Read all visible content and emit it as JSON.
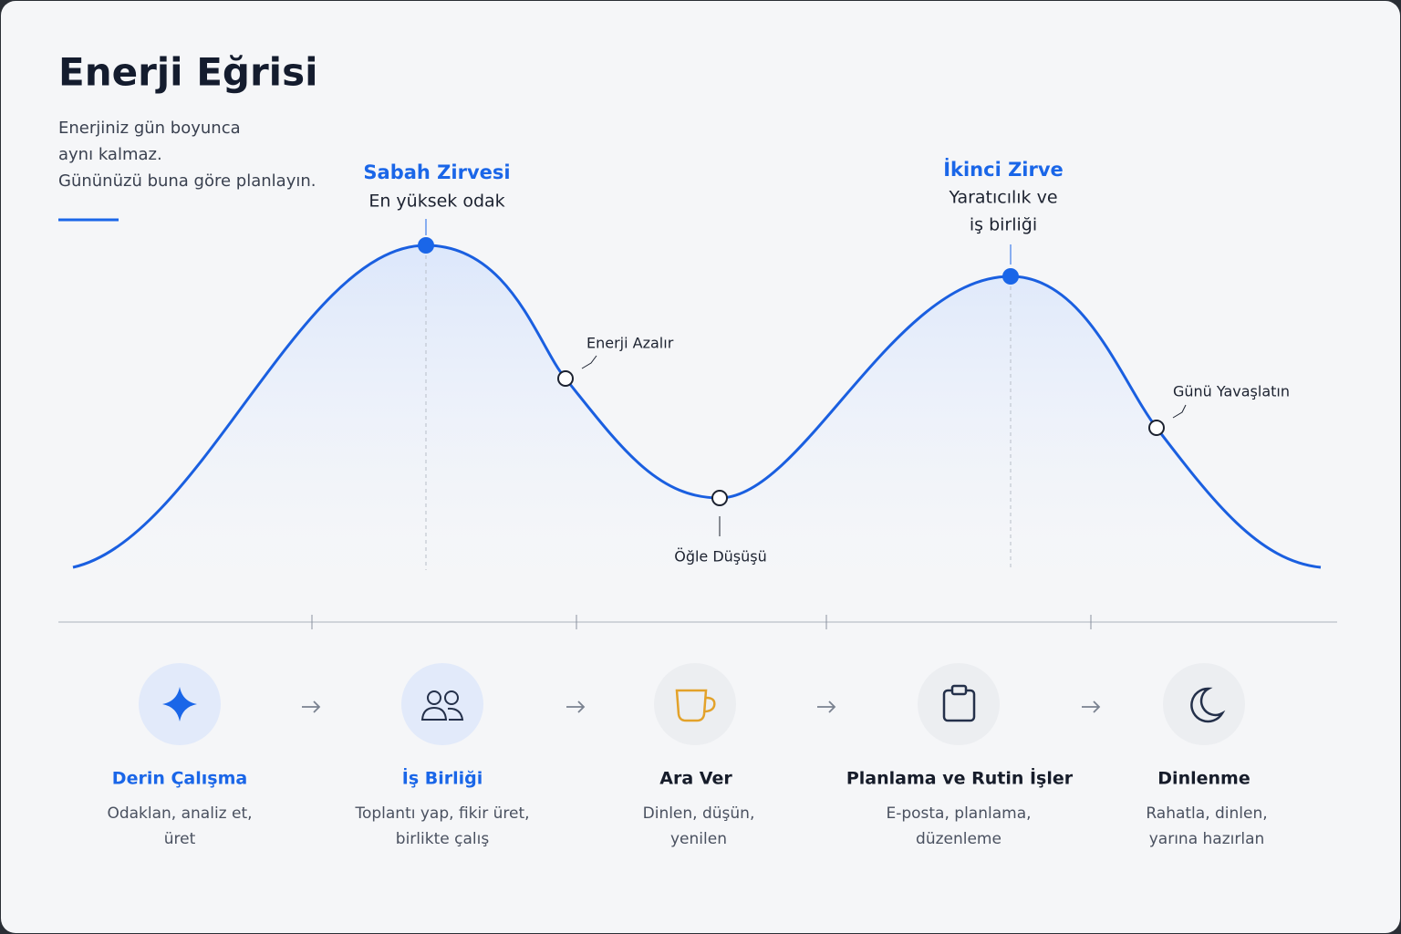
{
  "header": {
    "title": "Enerji Eğrisi",
    "subtitle": [
      "Enerjiniz gün boyunca",
      "aynı kalmaz.",
      "Gününüzü buna göre planlayın."
    ]
  },
  "peaks": [
    {
      "title": "Sabah Zirvesi",
      "lines": [
        "En yüksek odak"
      ]
    },
    {
      "title": "İkinci Zirve",
      "lines": [
        "Yaratıcılık ve",
        "iş birliği"
      ]
    }
  ],
  "markers": [
    "Enerji Azalır",
    "Öğle Düşüşü",
    "Günü Yavaşlatın"
  ],
  "steps": [
    {
      "title": "Derin Çalışma",
      "lines": [
        "Odaklan, analiz et,",
        "üret"
      ]
    },
    {
      "title": "İş Birliği",
      "lines": [
        "Toplantı yap, fikir üret,",
        "birlikte çalış"
      ]
    },
    {
      "title": "Ara Ver",
      "lines": [
        "Dinlen, düşün,",
        "yenilen"
      ]
    },
    {
      "title": "Planlama ve Rutin İşler",
      "lines": [
        "E-posta, planlama,",
        "düzenleme"
      ]
    },
    {
      "title": "Dinlenme",
      "lines": [
        "Rahatla, dinlen,",
        "yarına hazırlan"
      ]
    }
  ]
}
